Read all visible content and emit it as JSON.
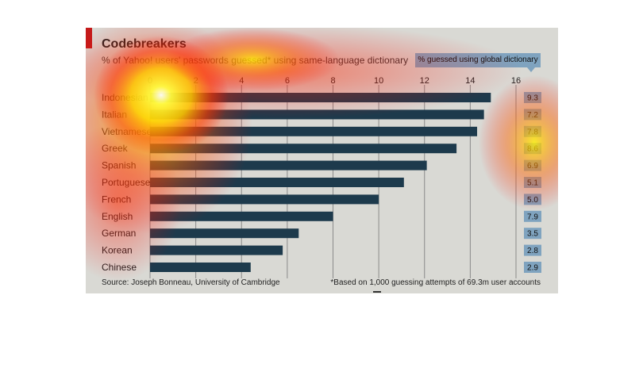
{
  "chart_data": {
    "type": "bar",
    "orientation": "horizontal",
    "title": "Codebreakers",
    "subtitle": "% of Yahoo! users' passwords guessed* using same-language dictionary",
    "categories": [
      "Indonesian",
      "Italian",
      "Vietnamese",
      "Greek",
      "Spanish",
      "Portuguese",
      "French",
      "English",
      "German",
      "Korean",
      "Chinese"
    ],
    "values": [
      14.9,
      14.6,
      14.3,
      13.4,
      12.1,
      11.1,
      10.0,
      8.0,
      6.5,
      5.8,
      4.4
    ],
    "xlim": [
      0,
      16
    ],
    "xticks": [
      "0",
      "2",
      "4",
      "6",
      "8",
      "10",
      "12",
      "14",
      "16"
    ],
    "global_dictionary": {
      "label": "% guessed using global dictionary",
      "values": [
        "9.3",
        "7.2",
        "7.8",
        "8.6",
        "6.9",
        "5.1",
        "5.0",
        "7.9",
        "3.5",
        "2.8",
        "2.9"
      ]
    },
    "source": "Source: Joseph Bonneau, University of Cambridge",
    "footnote": "*Based on 1,000 guessing attempts of 69.3m user accounts",
    "bar_color": "#1d3a4c",
    "legend_color": "#7fa3bf"
  }
}
